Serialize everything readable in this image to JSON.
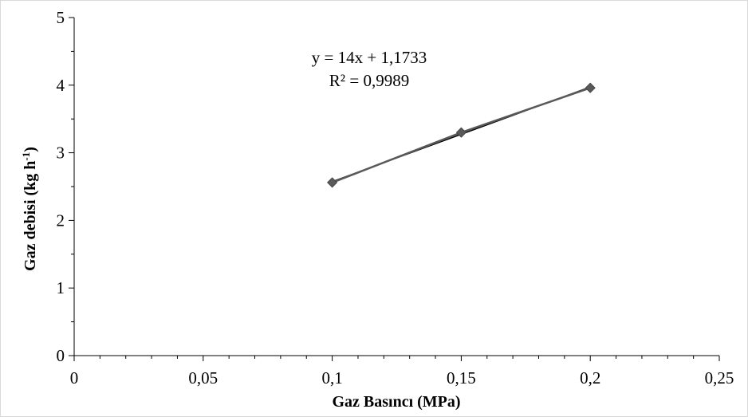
{
  "chart_data": {
    "type": "scatter",
    "xlabel": "Gaz Basıncı (MPa)",
    "ylabel_main": "Gaz debisi (kg h",
    "ylabel_sup": "-1",
    "ylabel_close": ")",
    "xlim": [
      0,
      0.25
    ],
    "ylim": [
      0,
      5
    ],
    "x_ticks": [
      0,
      0.05,
      0.1,
      0.15,
      0.2,
      0.25
    ],
    "x_tick_labels": [
      "0",
      "0,05",
      "0,1",
      "0,15",
      "0,2",
      "0,25"
    ],
    "y_ticks": [
      0,
      1,
      2,
      3,
      4,
      5
    ],
    "y_tick_labels": [
      "0",
      "1",
      "2",
      "3",
      "4",
      "5"
    ],
    "grid": false,
    "series": [
      {
        "x": [
          0.1,
          0.15,
          0.2
        ],
        "y": [
          2.56,
          3.3,
          3.96
        ],
        "marker": "diamond",
        "color": "#595959"
      }
    ],
    "trendline": {
      "type": "linear",
      "slope": 14,
      "intercept": 1.1733,
      "x_range": [
        0.1,
        0.2
      ],
      "color": "#000000"
    },
    "annotations": {
      "equation": "y = 14x + 1,1733",
      "r_squared": "R² = 0,9989"
    }
  }
}
